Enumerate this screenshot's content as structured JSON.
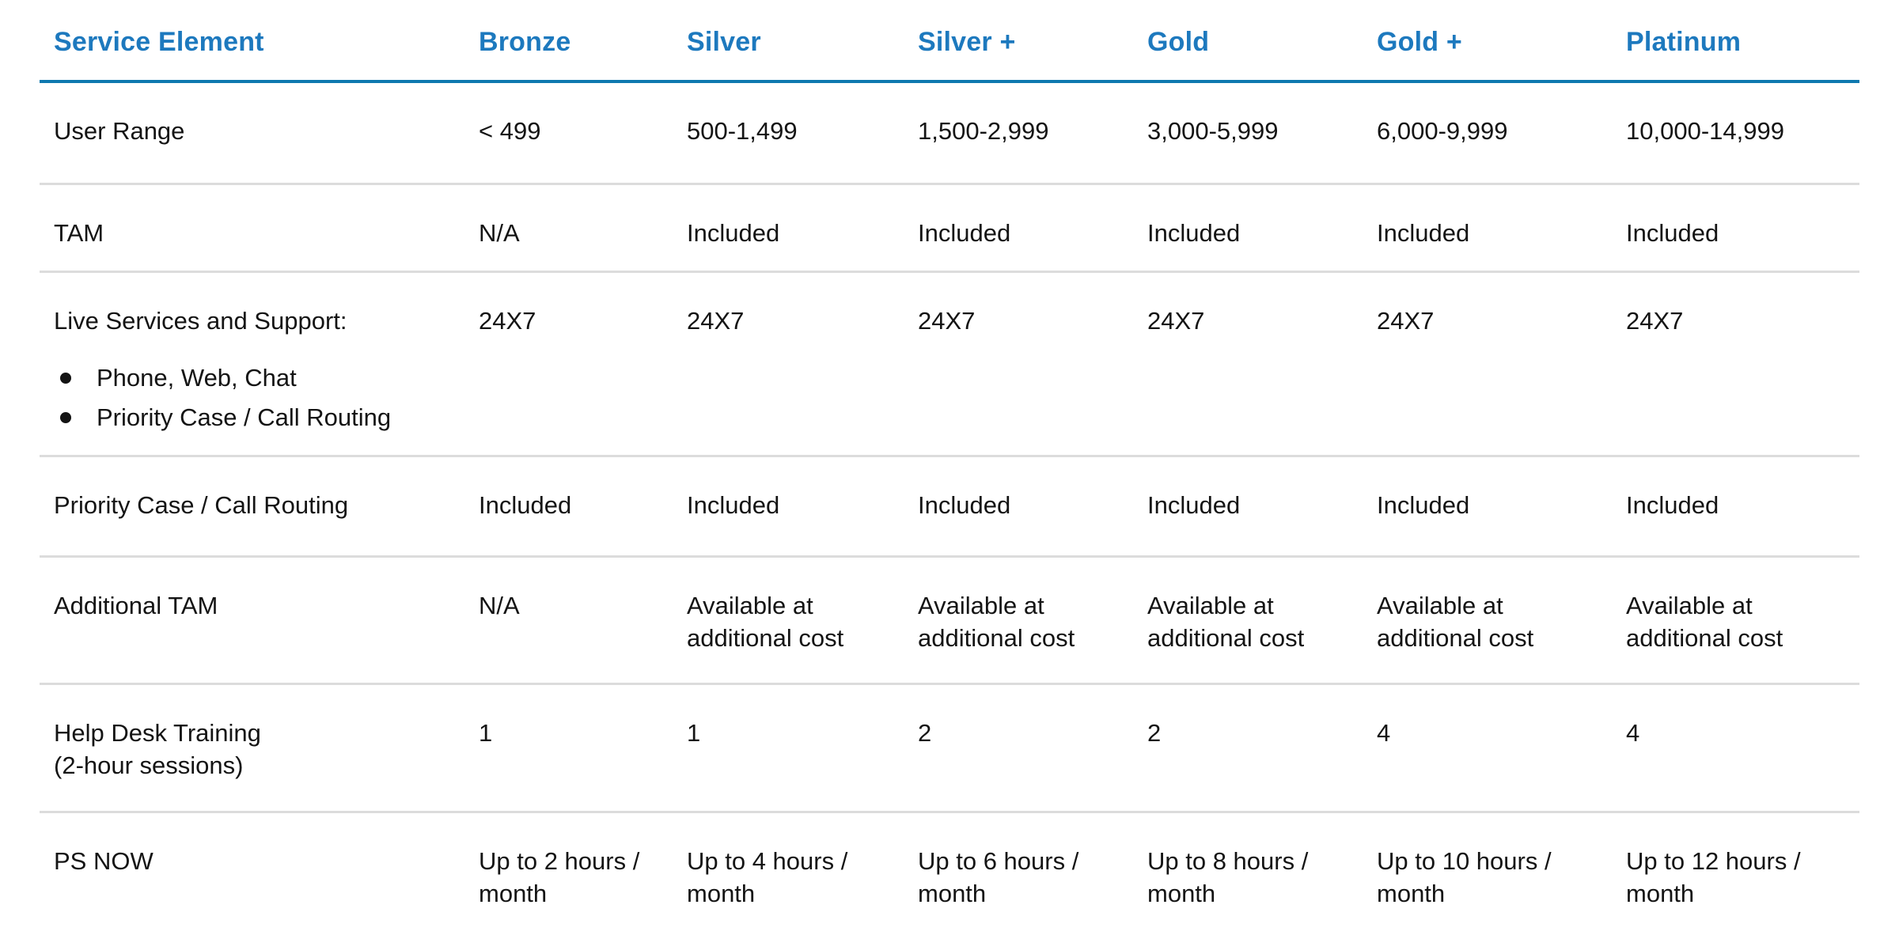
{
  "colors": {
    "header_text": "#1D79BE",
    "header_rule": "#0E79AF",
    "row_rule": "#DCDCDC",
    "body_text": "#141414",
    "background": "#FFFFFF"
  },
  "table": {
    "columns": [
      "Service Element",
      "Bronze",
      "Silver",
      "Silver +",
      "Gold",
      "Gold +",
      "Platinum"
    ],
    "rows": [
      {
        "label": "User Range",
        "values": [
          "< 499",
          "500-1,499",
          "1,500-2,999",
          "3,000-5,999",
          "6,000-9,999",
          "10,000-14,999"
        ]
      },
      {
        "label": "TAM",
        "values": [
          "N/A",
          "Included",
          "Included",
          "Included",
          "Included",
          "Included"
        ]
      },
      {
        "label": "Live Services and Support:",
        "bullets": [
          "Phone, Web, Chat",
          "Priority Case / Call Routing"
        ],
        "values": [
          "24X7",
          "24X7",
          "24X7",
          "24X7",
          "24X7",
          "24X7"
        ]
      },
      {
        "label": "Priority Case / Call Routing",
        "values": [
          "Included",
          "Included",
          "Included",
          "Included",
          "Included",
          "Included"
        ]
      },
      {
        "label": "Additional TAM",
        "values": [
          "N/A",
          "Available at additional cost",
          "Available at additional cost",
          "Available at additional cost",
          "Available at additional cost",
          "Available at additional cost"
        ]
      },
      {
        "label": "Help Desk Training",
        "label_line2": "(2-hour sessions)",
        "values": [
          "1",
          "1",
          "2",
          "2",
          "4",
          "4"
        ]
      },
      {
        "label": "PS NOW",
        "values": [
          "Up to 2 hours / month",
          "Up to 4 hours / month",
          "Up to 6 hours / month",
          "Up to 8 hours / month",
          "Up to 10 hours / month",
          "Up to 12 hours / month"
        ]
      }
    ]
  }
}
